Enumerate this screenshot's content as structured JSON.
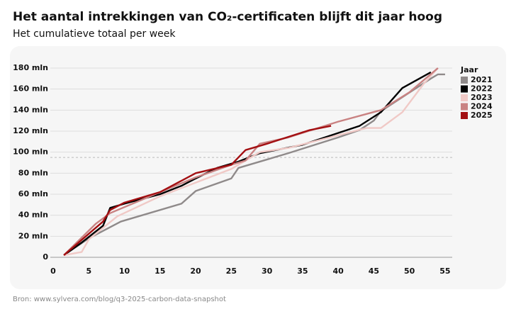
{
  "chart_data": {
    "type": "line",
    "title": "Het aantal intrekkingen van CO₂-certificaten blijft dit jaar hoog",
    "subtitle": "Het cumulatieve totaal per week",
    "source": "Bron: www.sylvera.com/blog/q3-2025-carbon-data-snapshot",
    "legend_title": "Jaar",
    "legend_position": "right",
    "grid": true,
    "xlim": [
      0,
      56
    ],
    "xticks": [
      0,
      5,
      10,
      15,
      20,
      25,
      30,
      35,
      40,
      45,
      50,
      55
    ],
    "ylim": [
      0,
      180
    ],
    "yticks": [
      0,
      {
        "value": 20,
        "label": "20 mln"
      },
      {
        "value": 40,
        "label": "40 mln"
      },
      {
        "value": 60,
        "label": "60 mln"
      },
      {
        "value": 80,
        "label": "80 mln"
      },
      {
        "value": 100,
        "label": "100 mln"
      },
      {
        "value": 120,
        "label": "120 mln"
      },
      {
        "value": 140,
        "label": "140 mln"
      },
      {
        "value": 160,
        "label": "160 mln"
      },
      {
        "value": 180,
        "label": "180 mln"
      }
    ],
    "reference_line": 95,
    "series": [
      {
        "name": "2021",
        "color": "#8f8a8a",
        "x": [
          1.5,
          5,
          9.5,
          18,
          20,
          25,
          26,
          30,
          33,
          40,
          43,
          45,
          46,
          53,
          54,
          55
        ],
        "values": [
          2,
          18,
          34,
          51,
          63,
          75,
          85,
          93,
          99,
          114,
          121,
          130,
          139,
          170,
          174,
          174
        ]
      },
      {
        "name": "2022",
        "color": "#000000",
        "x": [
          1.5,
          4,
          7,
          8,
          10,
          15,
          18,
          20,
          23,
          26,
          29,
          35,
          43,
          46,
          49,
          53
        ],
        "values": [
          2,
          14,
          30,
          47,
          51,
          60,
          68,
          75,
          85,
          91,
          99,
          107,
          125,
          138,
          161,
          176
        ]
      },
      {
        "name": "2023",
        "color": "#f0c9c6",
        "x": [
          1.5,
          4,
          5,
          9,
          15,
          20,
          25,
          27,
          29,
          33,
          44,
          46,
          49,
          52,
          54
        ],
        "values": [
          2,
          5,
          17,
          39,
          58,
          71,
          84,
          92,
          100,
          104,
          123,
          123,
          138,
          165,
          180
        ]
      },
      {
        "name": "2024",
        "color": "#c98282",
        "x": [
          1.5,
          6,
          8,
          15,
          20,
          25,
          27,
          29,
          33,
          40,
          46,
          50,
          54
        ],
        "values": [
          2,
          32,
          42,
          62,
          76,
          88,
          92,
          108,
          114,
          129,
          140,
          157,
          180
        ]
      },
      {
        "name": "2025",
        "color": "#a30f12",
        "x": [
          1.5,
          7,
          8,
          10,
          15,
          20,
          25,
          27,
          30,
          36,
          39
        ],
        "values": [
          2,
          34,
          45,
          52,
          62,
          80,
          88,
          102,
          108,
          121,
          125
        ]
      }
    ]
  }
}
